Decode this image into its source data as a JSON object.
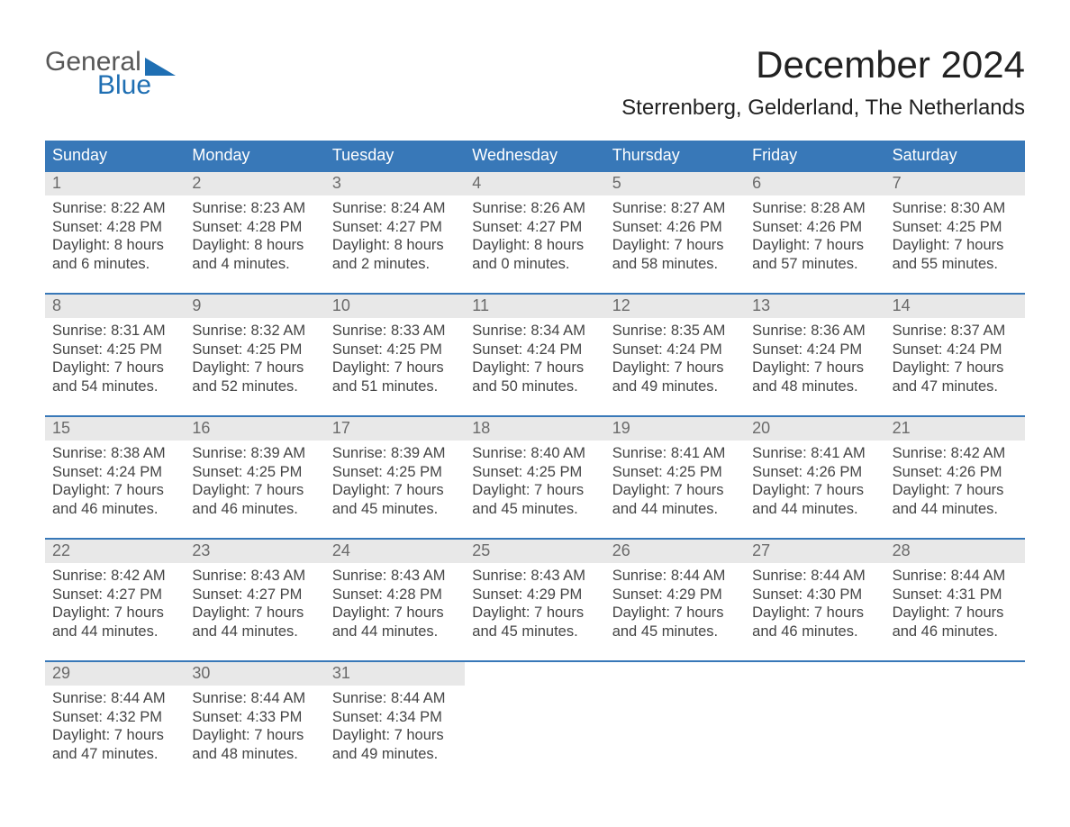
{
  "logo": {
    "word1": "General",
    "word2": "Blue"
  },
  "title": "December 2024",
  "subtitle": "Sterrenberg, Gelderland, The Netherlands",
  "weekdays": [
    "Sunday",
    "Monday",
    "Tuesday",
    "Wednesday",
    "Thursday",
    "Friday",
    "Saturday"
  ],
  "colors": {
    "header_blue": "#3878b8",
    "day_header_bg": "#e8e8e8",
    "day_header_text": "#6a6a6a",
    "cell_text": "#444444",
    "logo_dark": "#1f6fb3",
    "logo_text": "#585858"
  },
  "weeks": [
    [
      {
        "n": "1",
        "sr": "8:22 AM",
        "ss": "4:28 PM",
        "dl": "8 hours and 6 minutes."
      },
      {
        "n": "2",
        "sr": "8:23 AM",
        "ss": "4:28 PM",
        "dl": "8 hours and 4 minutes."
      },
      {
        "n": "3",
        "sr": "8:24 AM",
        "ss": "4:27 PM",
        "dl": "8 hours and 2 minutes."
      },
      {
        "n": "4",
        "sr": "8:26 AM",
        "ss": "4:27 PM",
        "dl": "8 hours and 0 minutes."
      },
      {
        "n": "5",
        "sr": "8:27 AM",
        "ss": "4:26 PM",
        "dl": "7 hours and 58 minutes."
      },
      {
        "n": "6",
        "sr": "8:28 AM",
        "ss": "4:26 PM",
        "dl": "7 hours and 57 minutes."
      },
      {
        "n": "7",
        "sr": "8:30 AM",
        "ss": "4:25 PM",
        "dl": "7 hours and 55 minutes."
      }
    ],
    [
      {
        "n": "8",
        "sr": "8:31 AM",
        "ss": "4:25 PM",
        "dl": "7 hours and 54 minutes."
      },
      {
        "n": "9",
        "sr": "8:32 AM",
        "ss": "4:25 PM",
        "dl": "7 hours and 52 minutes."
      },
      {
        "n": "10",
        "sr": "8:33 AM",
        "ss": "4:25 PM",
        "dl": "7 hours and 51 minutes."
      },
      {
        "n": "11",
        "sr": "8:34 AM",
        "ss": "4:24 PM",
        "dl": "7 hours and 50 minutes."
      },
      {
        "n": "12",
        "sr": "8:35 AM",
        "ss": "4:24 PM",
        "dl": "7 hours and 49 minutes."
      },
      {
        "n": "13",
        "sr": "8:36 AM",
        "ss": "4:24 PM",
        "dl": "7 hours and 48 minutes."
      },
      {
        "n": "14",
        "sr": "8:37 AM",
        "ss": "4:24 PM",
        "dl": "7 hours and 47 minutes."
      }
    ],
    [
      {
        "n": "15",
        "sr": "8:38 AM",
        "ss": "4:24 PM",
        "dl": "7 hours and 46 minutes."
      },
      {
        "n": "16",
        "sr": "8:39 AM",
        "ss": "4:25 PM",
        "dl": "7 hours and 46 minutes."
      },
      {
        "n": "17",
        "sr": "8:39 AM",
        "ss": "4:25 PM",
        "dl": "7 hours and 45 minutes."
      },
      {
        "n": "18",
        "sr": "8:40 AM",
        "ss": "4:25 PM",
        "dl": "7 hours and 45 minutes."
      },
      {
        "n": "19",
        "sr": "8:41 AM",
        "ss": "4:25 PM",
        "dl": "7 hours and 44 minutes."
      },
      {
        "n": "20",
        "sr": "8:41 AM",
        "ss": "4:26 PM",
        "dl": "7 hours and 44 minutes."
      },
      {
        "n": "21",
        "sr": "8:42 AM",
        "ss": "4:26 PM",
        "dl": "7 hours and 44 minutes."
      }
    ],
    [
      {
        "n": "22",
        "sr": "8:42 AM",
        "ss": "4:27 PM",
        "dl": "7 hours and 44 minutes."
      },
      {
        "n": "23",
        "sr": "8:43 AM",
        "ss": "4:27 PM",
        "dl": "7 hours and 44 minutes."
      },
      {
        "n": "24",
        "sr": "8:43 AM",
        "ss": "4:28 PM",
        "dl": "7 hours and 44 minutes."
      },
      {
        "n": "25",
        "sr": "8:43 AM",
        "ss": "4:29 PM",
        "dl": "7 hours and 45 minutes."
      },
      {
        "n": "26",
        "sr": "8:44 AM",
        "ss": "4:29 PM",
        "dl": "7 hours and 45 minutes."
      },
      {
        "n": "27",
        "sr": "8:44 AM",
        "ss": "4:30 PM",
        "dl": "7 hours and 46 minutes."
      },
      {
        "n": "28",
        "sr": "8:44 AM",
        "ss": "4:31 PM",
        "dl": "7 hours and 46 minutes."
      }
    ],
    [
      {
        "n": "29",
        "sr": "8:44 AM",
        "ss": "4:32 PM",
        "dl": "7 hours and 47 minutes."
      },
      {
        "n": "30",
        "sr": "8:44 AM",
        "ss": "4:33 PM",
        "dl": "7 hours and 48 minutes."
      },
      {
        "n": "31",
        "sr": "8:44 AM",
        "ss": "4:34 PM",
        "dl": "7 hours and 49 minutes."
      },
      null,
      null,
      null,
      null
    ]
  ],
  "labels": {
    "sunrise": "Sunrise: ",
    "sunset": "Sunset: ",
    "daylight": "Daylight: "
  }
}
